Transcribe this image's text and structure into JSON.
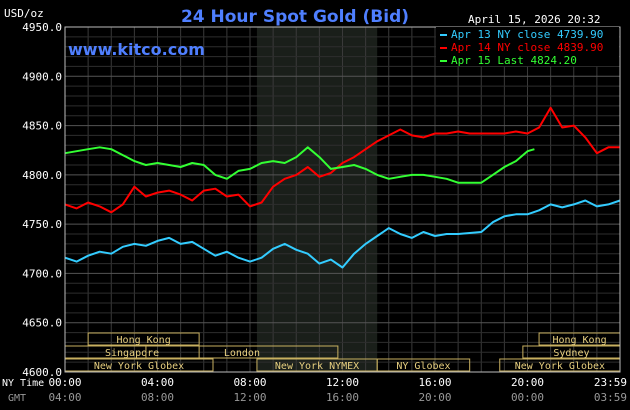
{
  "header": {
    "unit": "USD/oz",
    "title": "24 Hour Spot Gold (Bid)",
    "datetime": "April 15, 2026 20:32",
    "website": "www.kitco.com"
  },
  "legend": [
    {
      "text": "Apr 13 NY close 4739.90",
      "color": "#33ccff"
    },
    {
      "text": "Apr 14 NY close 4839.90",
      "color": "#ff0000"
    },
    {
      "text": "Apr 15 Last 4824.20",
      "color": "#33ff33"
    }
  ],
  "x_axis": {
    "row_label_ny": "NY Time",
    "row_label_gmt": "GMT",
    "ny_ticks": [
      {
        "hour": 0,
        "label": "00:00"
      },
      {
        "hour": 4,
        "label": "04:00"
      },
      {
        "hour": 8,
        "label": "08:00"
      },
      {
        "hour": 12,
        "label": "12:00"
      },
      {
        "hour": 16,
        "label": "16:00"
      },
      {
        "hour": 20,
        "label": "20:00"
      },
      {
        "hour": 23.98,
        "label": "23:59"
      }
    ],
    "gmt_ticks": [
      {
        "hour": 0,
        "label": "04:00"
      },
      {
        "hour": 4,
        "label": "08:00"
      },
      {
        "hour": 8,
        "label": "12:00"
      },
      {
        "hour": 12,
        "label": "16:00"
      },
      {
        "hour": 16,
        "label": "20:00"
      },
      {
        "hour": 20,
        "label": "00:00"
      },
      {
        "hour": 23.98,
        "label": "03:59"
      }
    ]
  },
  "sessions": [
    {
      "name": "Hong Kong",
      "start": 1,
      "end": 5.8,
      "row": 0
    },
    {
      "name": "Singapore",
      "start": 0,
      "end": 5.8,
      "row": 1
    },
    {
      "name": "London",
      "start": 3.5,
      "end": 11.8,
      "row": 1
    },
    {
      "name": "New York Globex",
      "start": 0,
      "end": 6.4,
      "row": 2
    },
    {
      "name": "New York NYMEX",
      "start": 8.3,
      "end": 13.5,
      "row": 2
    },
    {
      "name": "NY Globex",
      "start": 13.5,
      "end": 17.5,
      "row": 2
    },
    {
      "name": "Hong Kong",
      "start": 20.5,
      "end": 24,
      "row": 0
    },
    {
      "name": "Sydney",
      "start": 19.8,
      "end": 24,
      "row": 1
    },
    {
      "name": "New York Globex",
      "start": 18.8,
      "end": 24,
      "row": 2
    }
  ],
  "chart_data": {
    "type": "line",
    "y_ticks": [
      4600,
      4650,
      4700,
      4750,
      4800,
      4850,
      4900,
      4950
    ],
    "y_tick_labels": [
      "4600.0",
      "4650.0",
      "4700.0",
      "4750.0",
      "4800.0",
      "4850.0",
      "4900.0",
      "4950.0"
    ],
    "ylim": [
      4600,
      4950
    ],
    "xlim": [
      0,
      24
    ],
    "shaded_range": [
      8.3,
      13.5
    ],
    "grid": true,
    "series": [
      {
        "name": "Apr 13 NY close 4739.90",
        "color": "#33ccff",
        "x": [
          0,
          0.5,
          1,
          1.5,
          2,
          2.5,
          3,
          3.5,
          4,
          4.5,
          5,
          5.5,
          6,
          6.5,
          7,
          7.5,
          8,
          8.5,
          9,
          9.5,
          10,
          10.5,
          11,
          11.5,
          12,
          12.5,
          13,
          13.5,
          14,
          14.5,
          15,
          15.5,
          16,
          16.5,
          17,
          17.5,
          18,
          18.5,
          19,
          19.5,
          20,
          20.5,
          21,
          21.5,
          22,
          22.5,
          23,
          23.5,
          24
        ],
        "values": [
          4716,
          4712,
          4718,
          4722,
          4720,
          4727,
          4730,
          4728,
          4733,
          4736,
          4730,
          4732,
          4725,
          4718,
          4722,
          4716,
          4712,
          4716,
          4725,
          4730,
          4724,
          4720,
          4710,
          4714,
          4706,
          4720,
          4730,
          4738,
          4746,
          4740,
          4736,
          4742,
          4738,
          4740,
          4740,
          4741,
          4742,
          4752,
          4758,
          4760,
          4760,
          4764,
          4770,
          4767,
          4770,
          4774,
          4768,
          4770,
          4774
        ]
      },
      {
        "name": "Apr 14 NY close 4839.90",
        "color": "#ff0000",
        "x": [
          0,
          0.5,
          1,
          1.5,
          2,
          2.5,
          3,
          3.5,
          4,
          4.5,
          5,
          5.5,
          6,
          6.5,
          7,
          7.5,
          8,
          8.5,
          9,
          9.5,
          10,
          10.5,
          11,
          11.5,
          12,
          12.5,
          13,
          13.5,
          14,
          14.5,
          15,
          15.5,
          16,
          16.5,
          17,
          17.5,
          18,
          18.5,
          19,
          19.5,
          20,
          20.5,
          21,
          21.5,
          22,
          22.5,
          23,
          23.5,
          24
        ],
        "values": [
          4770,
          4766,
          4772,
          4768,
          4762,
          4770,
          4788,
          4778,
          4782,
          4784,
          4780,
          4774,
          4784,
          4786,
          4778,
          4780,
          4768,
          4772,
          4788,
          4796,
          4800,
          4808,
          4798,
          4802,
          4812,
          4818,
          4826,
          4834,
          4840,
          4846,
          4840,
          4838,
          4842,
          4842,
          4844,
          4842,
          4842,
          4842,
          4842,
          4844,
          4842,
          4848,
          4868,
          4848,
          4850,
          4838,
          4822,
          4828,
          4828
        ]
      },
      {
        "name": "Apr 15 Last 4824.20",
        "color": "#33ff33",
        "x": [
          0,
          0.5,
          1,
          1.5,
          2,
          2.5,
          3,
          3.5,
          4,
          4.5,
          5,
          5.5,
          6,
          6.5,
          7,
          7.5,
          8,
          8.5,
          9,
          9.5,
          10,
          10.5,
          11,
          11.5,
          12,
          12.5,
          13,
          13.5,
          14,
          14.5,
          15,
          15.5,
          16,
          16.5,
          17,
          17.5,
          18,
          18.5,
          19,
          19.5,
          20,
          20.3
        ],
        "values": [
          4822,
          4824,
          4826,
          4828,
          4826,
          4820,
          4814,
          4810,
          4812,
          4810,
          4808,
          4812,
          4810,
          4800,
          4796,
          4804,
          4806,
          4812,
          4814,
          4812,
          4818,
          4828,
          4818,
          4806,
          4808,
          4810,
          4806,
          4800,
          4796,
          4798,
          4800,
          4800,
          4798,
          4796,
          4792,
          4792,
          4792,
          4800,
          4808,
          4814,
          4824,
          4826
        ]
      }
    ]
  }
}
